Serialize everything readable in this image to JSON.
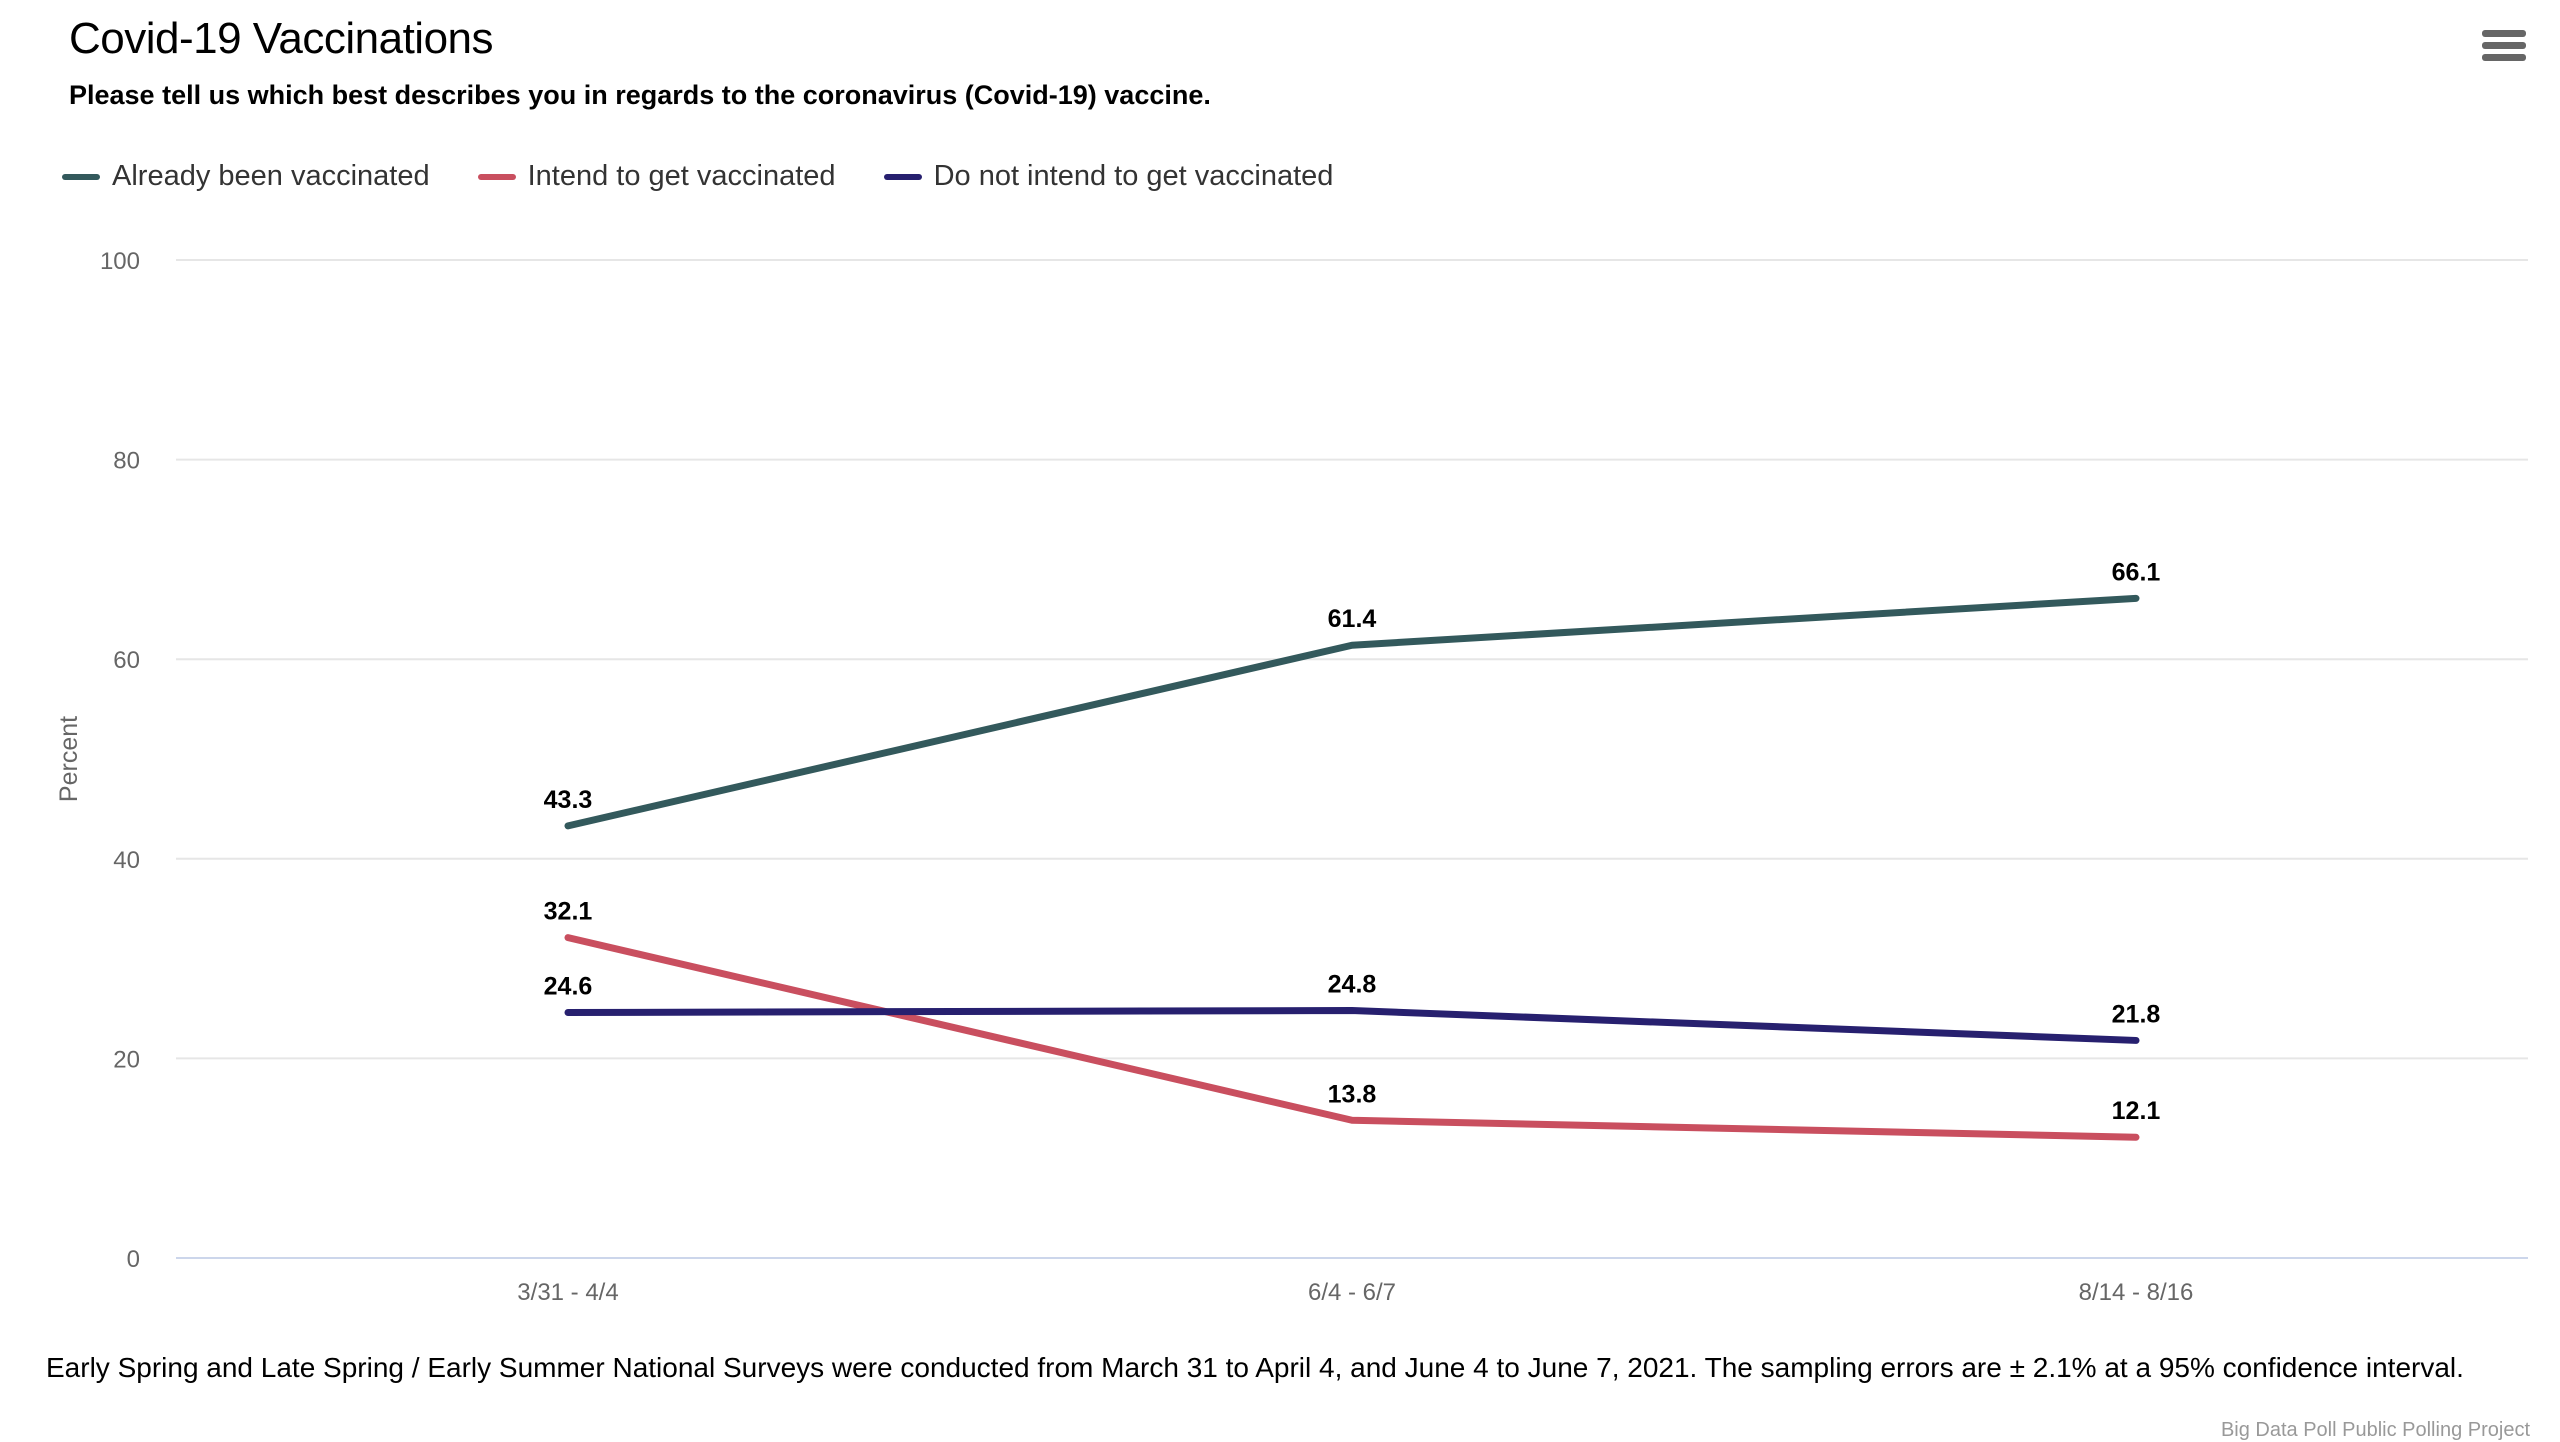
{
  "chart_data": {
    "type": "line",
    "title": "Covid-19 Vaccinations",
    "subtitle": "Please tell us which best describes you in regards to the coronavirus (Covid-19) vaccine.",
    "ylabel": "Percent",
    "xlabel": "",
    "categories": [
      "3/31 - 4/4",
      "6/4 - 6/7",
      "8/14 - 8/16"
    ],
    "ylim": [
      0,
      100
    ],
    "yticks": [
      "0",
      "20",
      "40",
      "60",
      "80",
      "100"
    ],
    "grid": true,
    "legend_position": "top-left",
    "series": [
      {
        "name": "Already been vaccinated",
        "color": "#33595c",
        "values": [
          43.3,
          61.4,
          66.1
        ],
        "labels": [
          "43.3",
          "61.4",
          "66.1"
        ]
      },
      {
        "name": "Intend to get vaccinated",
        "color": "#c94f5f",
        "values": [
          32.1,
          13.8,
          12.1
        ],
        "labels": [
          "32.1",
          "13.8",
          "12.1"
        ]
      },
      {
        "name": "Do not intend to get vaccinated",
        "color": "#27206f",
        "values": [
          24.6,
          24.8,
          21.8
        ],
        "labels": [
          "24.6",
          "24.8",
          "21.8"
        ]
      }
    ]
  },
  "menu": {
    "icon": "hamburger-menu-icon"
  },
  "footnote": "Early Spring and Late Spring / Early Summer National Surveys were conducted from March 31 to April 4, and June 4 to June 7, 2021. The sampling errors are ± 2.1% at a 95% confidence interval.",
  "credits": "Big Data Poll Public Polling Project"
}
